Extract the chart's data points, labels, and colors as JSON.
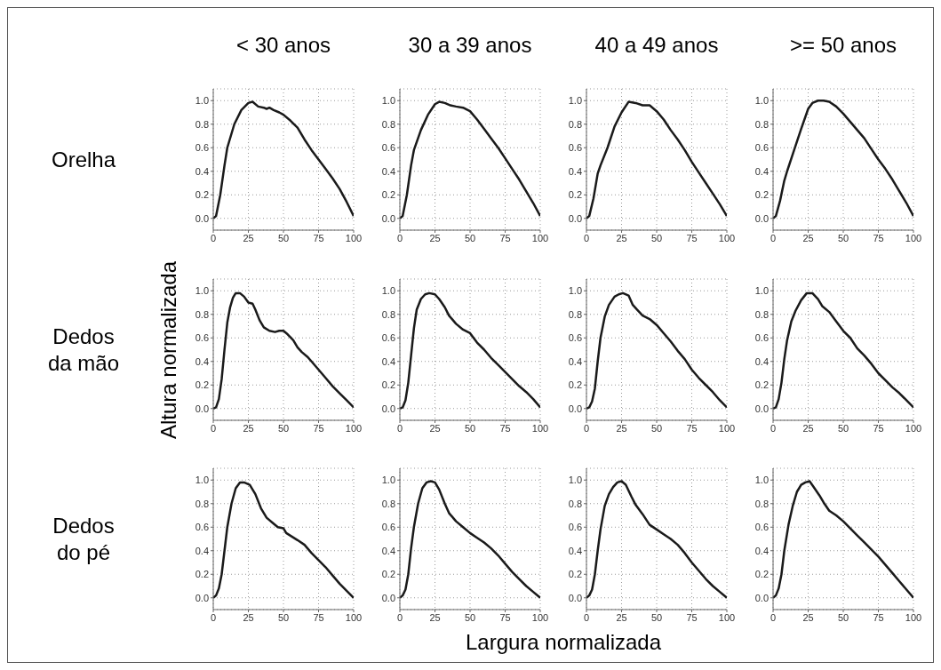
{
  "chart_data": [
    {
      "type": "line",
      "title": "< 30 anos",
      "annotations": [
        "Orelha"
      ],
      "xlim": [
        0,
        100
      ],
      "xticks": [
        0,
        25,
        50,
        75,
        100
      ],
      "ylim": [
        -0.1,
        1.1
      ],
      "yticks": [
        {
          "value": 0,
          "label": "0.0"
        },
        {
          "value": 0.2,
          "label": "0.2"
        },
        {
          "value": 0.4,
          "label": "0.4"
        },
        {
          "value": 0.6,
          "label": "0.6"
        },
        {
          "value": 0.8,
          "label": "0.8"
        },
        {
          "value": 1,
          "label": "1.0"
        }
      ],
      "grid": true,
      "series": [
        {
          "color": "#1a1a1a",
          "x": [
            0,
            2,
            5,
            8,
            10,
            15,
            20,
            25,
            28,
            32,
            36,
            38,
            40,
            43,
            47,
            50,
            55,
            60,
            65,
            70,
            75,
            80,
            85,
            90,
            95,
            100
          ],
          "values": [
            0,
            0.02,
            0.2,
            0.45,
            0.6,
            0.8,
            0.92,
            0.98,
            0.99,
            0.95,
            0.94,
            0.93,
            0.94,
            0.92,
            0.9,
            0.88,
            0.83,
            0.77,
            0.67,
            0.58,
            0.5,
            0.42,
            0.34,
            0.25,
            0.14,
            0.02
          ]
        }
      ]
    },
    {
      "type": "line",
      "title": "30 a 39 anos",
      "xlim": [
        0,
        100
      ],
      "xticks": [
        0,
        25,
        50,
        75,
        100
      ],
      "ylim": [
        -0.1,
        1.1
      ],
      "yticks": [
        {
          "value": 0,
          "label": "0.0"
        },
        {
          "value": 0.2,
          "label": "0.2"
        },
        {
          "value": 0.4,
          "label": "0.4"
        },
        {
          "value": 0.6,
          "label": "0.6"
        },
        {
          "value": 0.8,
          "label": "0.8"
        },
        {
          "value": 1,
          "label": "1.0"
        }
      ],
      "grid": true,
      "series": [
        {
          "color": "#1a1a1a",
          "x": [
            0,
            2,
            5,
            8,
            10,
            15,
            20,
            25,
            28,
            32,
            36,
            40,
            45,
            50,
            55,
            60,
            65,
            70,
            75,
            80,
            85,
            90,
            95,
            100
          ],
          "values": [
            0,
            0.02,
            0.2,
            0.45,
            0.58,
            0.75,
            0.88,
            0.97,
            0.99,
            0.98,
            0.96,
            0.95,
            0.94,
            0.91,
            0.84,
            0.76,
            0.68,
            0.6,
            0.51,
            0.42,
            0.33,
            0.23,
            0.13,
            0.02
          ]
        }
      ]
    },
    {
      "type": "line",
      "title": "40 a 49 anos",
      "xlim": [
        0,
        100
      ],
      "xticks": [
        0,
        25,
        50,
        75,
        100
      ],
      "ylim": [
        -0.1,
        1.1
      ],
      "yticks": [
        {
          "value": 0,
          "label": "0.0"
        },
        {
          "value": 0.2,
          "label": "0.2"
        },
        {
          "value": 0.4,
          "label": "0.4"
        },
        {
          "value": 0.6,
          "label": "0.6"
        },
        {
          "value": 0.8,
          "label": "0.8"
        },
        {
          "value": 1,
          "label": "1.0"
        }
      ],
      "grid": true,
      "series": [
        {
          "color": "#1a1a1a",
          "x": [
            0,
            2,
            5,
            8,
            10,
            15,
            20,
            25,
            30,
            35,
            40,
            45,
            50,
            55,
            60,
            65,
            70,
            75,
            80,
            85,
            90,
            95,
            100
          ],
          "values": [
            0,
            0.02,
            0.17,
            0.38,
            0.45,
            0.6,
            0.78,
            0.9,
            0.99,
            0.98,
            0.96,
            0.96,
            0.91,
            0.84,
            0.75,
            0.67,
            0.58,
            0.48,
            0.39,
            0.3,
            0.21,
            0.12,
            0.02
          ]
        }
      ]
    },
    {
      "type": "line",
      "title": ">= 50 anos",
      "xlim": [
        0,
        100
      ],
      "xticks": [
        0,
        25,
        50,
        75,
        100
      ],
      "ylim": [
        -0.1,
        1.1
      ],
      "yticks": [
        {
          "value": 0,
          "label": "0.0"
        },
        {
          "value": 0.2,
          "label": "0.2"
        },
        {
          "value": 0.4,
          "label": "0.4"
        },
        {
          "value": 0.6,
          "label": "0.6"
        },
        {
          "value": 0.8,
          "label": "0.8"
        },
        {
          "value": 1,
          "label": "1.0"
        }
      ],
      "grid": true,
      "series": [
        {
          "color": "#1a1a1a",
          "x": [
            0,
            2,
            5,
            8,
            10,
            15,
            20,
            25,
            28,
            32,
            36,
            40,
            45,
            50,
            55,
            60,
            65,
            70,
            75,
            80,
            85,
            90,
            95,
            100
          ],
          "values": [
            0,
            0.02,
            0.15,
            0.32,
            0.4,
            0.58,
            0.76,
            0.93,
            0.98,
            1,
            1,
            0.99,
            0.95,
            0.89,
            0.82,
            0.75,
            0.68,
            0.59,
            0.5,
            0.42,
            0.33,
            0.23,
            0.13,
            0.02
          ]
        }
      ]
    },
    {
      "type": "line",
      "annotations": [
        "Dedos da mão"
      ],
      "ylabel": "Altura normalizada",
      "xlim": [
        0,
        100
      ],
      "xticks": [
        0,
        25,
        50,
        75,
        100
      ],
      "ylim": [
        -0.1,
        1.1
      ],
      "yticks": [
        {
          "value": 0,
          "label": "0.0"
        },
        {
          "value": 0.2,
          "label": "0.2"
        },
        {
          "value": 0.4,
          "label": "0.4"
        },
        {
          "value": 0.6,
          "label": "0.6"
        },
        {
          "value": 0.8,
          "label": "0.8"
        },
        {
          "value": 1,
          "label": "1.0"
        }
      ],
      "grid": true,
      "series": [
        {
          "color": "#1a1a1a",
          "x": [
            0,
            2,
            4,
            6,
            8,
            10,
            12,
            14,
            16,
            19,
            22,
            25,
            28,
            30,
            33,
            36,
            40,
            44,
            47,
            50,
            53,
            57,
            60,
            63,
            67,
            70,
            75,
            80,
            85,
            90,
            95,
            100
          ],
          "values": [
            0,
            0.01,
            0.08,
            0.25,
            0.5,
            0.73,
            0.86,
            0.94,
            0.98,
            0.98,
            0.95,
            0.9,
            0.89,
            0.84,
            0.75,
            0.69,
            0.66,
            0.65,
            0.66,
            0.66,
            0.63,
            0.58,
            0.52,
            0.48,
            0.44,
            0.4,
            0.33,
            0.26,
            0.19,
            0.13,
            0.07,
            0.01
          ]
        }
      ]
    },
    {
      "type": "line",
      "xlim": [
        0,
        100
      ],
      "xticks": [
        0,
        25,
        50,
        75,
        100
      ],
      "ylim": [
        -0.1,
        1.1
      ],
      "yticks": [
        {
          "value": 0,
          "label": "0.0"
        },
        {
          "value": 0.2,
          "label": "0.2"
        },
        {
          "value": 0.4,
          "label": "0.4"
        },
        {
          "value": 0.6,
          "label": "0.6"
        },
        {
          "value": 0.8,
          "label": "0.8"
        },
        {
          "value": 1,
          "label": "1.0"
        }
      ],
      "grid": true,
      "series": [
        {
          "color": "#1a1a1a",
          "x": [
            0,
            2,
            4,
            6,
            8,
            10,
            12,
            15,
            18,
            21,
            25,
            28,
            32,
            35,
            40,
            45,
            50,
            55,
            60,
            65,
            70,
            75,
            80,
            85,
            90,
            95,
            100
          ],
          "values": [
            0,
            0.01,
            0.07,
            0.22,
            0.45,
            0.68,
            0.84,
            0.93,
            0.97,
            0.98,
            0.97,
            0.93,
            0.86,
            0.79,
            0.72,
            0.67,
            0.64,
            0.56,
            0.5,
            0.43,
            0.37,
            0.31,
            0.25,
            0.19,
            0.14,
            0.08,
            0.01
          ]
        }
      ]
    },
    {
      "type": "line",
      "xlim": [
        0,
        100
      ],
      "xticks": [
        0,
        25,
        50,
        75,
        100
      ],
      "ylim": [
        -0.1,
        1.1
      ],
      "yticks": [
        {
          "value": 0,
          "label": "0.0"
        },
        {
          "value": 0.2,
          "label": "0.2"
        },
        {
          "value": 0.4,
          "label": "0.4"
        },
        {
          "value": 0.6,
          "label": "0.6"
        },
        {
          "value": 0.8,
          "label": "0.8"
        },
        {
          "value": 1,
          "label": "1.0"
        }
      ],
      "grid": true,
      "series": [
        {
          "color": "#1a1a1a",
          "x": [
            0,
            2,
            4,
            6,
            8,
            10,
            13,
            16,
            20,
            23,
            26,
            30,
            33,
            36,
            40,
            45,
            50,
            55,
            60,
            65,
            70,
            75,
            80,
            85,
            90,
            95,
            100
          ],
          "values": [
            0,
            0.01,
            0.06,
            0.17,
            0.4,
            0.6,
            0.78,
            0.88,
            0.95,
            0.97,
            0.98,
            0.96,
            0.88,
            0.84,
            0.79,
            0.76,
            0.71,
            0.64,
            0.57,
            0.49,
            0.42,
            0.33,
            0.26,
            0.2,
            0.14,
            0.07,
            0.01
          ]
        }
      ]
    },
    {
      "type": "line",
      "xlim": [
        0,
        100
      ],
      "xticks": [
        0,
        25,
        50,
        75,
        100
      ],
      "ylim": [
        -0.1,
        1.1
      ],
      "yticks": [
        {
          "value": 0,
          "label": "0.0"
        },
        {
          "value": 0.2,
          "label": "0.2"
        },
        {
          "value": 0.4,
          "label": "0.4"
        },
        {
          "value": 0.6,
          "label": "0.6"
        },
        {
          "value": 0.8,
          "label": "0.8"
        },
        {
          "value": 1,
          "label": "1.0"
        }
      ],
      "grid": true,
      "series": [
        {
          "color": "#1a1a1a",
          "x": [
            0,
            2,
            4,
            6,
            8,
            10,
            13,
            16,
            20,
            24,
            28,
            32,
            35,
            40,
            45,
            50,
            55,
            60,
            65,
            70,
            75,
            80,
            85,
            90,
            95,
            100
          ],
          "values": [
            0,
            0.01,
            0.08,
            0.22,
            0.42,
            0.58,
            0.74,
            0.83,
            0.92,
            0.98,
            0.98,
            0.93,
            0.87,
            0.82,
            0.74,
            0.66,
            0.6,
            0.51,
            0.45,
            0.38,
            0.3,
            0.24,
            0.18,
            0.13,
            0.07,
            0.01
          ]
        }
      ]
    },
    {
      "type": "line",
      "annotations": [
        "Dedos do pé"
      ],
      "xlim": [
        0,
        100
      ],
      "xticks": [
        0,
        25,
        50,
        75,
        100
      ],
      "ylim": [
        -0.1,
        1.1
      ],
      "yticks": [
        {
          "value": 0,
          "label": "0.0"
        },
        {
          "value": 0.2,
          "label": "0.2"
        },
        {
          "value": 0.4,
          "label": "0.4"
        },
        {
          "value": 0.6,
          "label": "0.6"
        },
        {
          "value": 0.8,
          "label": "0.8"
        },
        {
          "value": 1,
          "label": "1.0"
        }
      ],
      "grid": true,
      "series": [
        {
          "color": "#1a1a1a",
          "x": [
            0,
            2,
            4,
            6,
            8,
            10,
            13,
            16,
            19,
            22,
            26,
            30,
            34,
            38,
            42,
            46,
            50,
            52,
            56,
            60,
            65,
            70,
            75,
            80,
            85,
            90,
            95,
            100
          ],
          "values": [
            0,
            0.02,
            0.08,
            0.2,
            0.4,
            0.6,
            0.8,
            0.93,
            0.98,
            0.98,
            0.96,
            0.88,
            0.76,
            0.68,
            0.64,
            0.6,
            0.59,
            0.55,
            0.52,
            0.49,
            0.45,
            0.38,
            0.32,
            0.26,
            0.19,
            0.12,
            0.06,
            0
          ]
        }
      ]
    },
    {
      "type": "line",
      "xlabel": "Largura normalizada",
      "xlim": [
        0,
        100
      ],
      "xticks": [
        0,
        25,
        50,
        75,
        100
      ],
      "ylim": [
        -0.1,
        1.1
      ],
      "yticks": [
        {
          "value": 0,
          "label": "0.0"
        },
        {
          "value": 0.2,
          "label": "0.2"
        },
        {
          "value": 0.4,
          "label": "0.4"
        },
        {
          "value": 0.6,
          "label": "0.6"
        },
        {
          "value": 0.8,
          "label": "0.8"
        },
        {
          "value": 1,
          "label": "1.0"
        }
      ],
      "grid": true,
      "series": [
        {
          "color": "#1a1a1a",
          "x": [
            0,
            2,
            4,
            6,
            8,
            10,
            13,
            16,
            19,
            22,
            25,
            28,
            32,
            35,
            40,
            45,
            50,
            55,
            60,
            65,
            70,
            75,
            80,
            85,
            90,
            95,
            100
          ],
          "values": [
            0,
            0.02,
            0.07,
            0.2,
            0.42,
            0.6,
            0.8,
            0.93,
            0.98,
            0.99,
            0.98,
            0.92,
            0.8,
            0.72,
            0.65,
            0.6,
            0.55,
            0.51,
            0.47,
            0.42,
            0.36,
            0.29,
            0.22,
            0.16,
            0.1,
            0.05,
            0
          ]
        }
      ]
    },
    {
      "type": "line",
      "xlim": [
        0,
        100
      ],
      "xticks": [
        0,
        25,
        50,
        75,
        100
      ],
      "ylim": [
        -0.1,
        1.1
      ],
      "yticks": [
        {
          "value": 0,
          "label": "0.0"
        },
        {
          "value": 0.2,
          "label": "0.2"
        },
        {
          "value": 0.4,
          "label": "0.4"
        },
        {
          "value": 0.6,
          "label": "0.6"
        },
        {
          "value": 0.8,
          "label": "0.8"
        },
        {
          "value": 1,
          "label": "1.0"
        }
      ],
      "grid": true,
      "series": [
        {
          "color": "#1a1a1a",
          "x": [
            0,
            2,
            4,
            6,
            8,
            10,
            13,
            16,
            19,
            22,
            25,
            28,
            32,
            35,
            40,
            45,
            50,
            55,
            60,
            65,
            70,
            75,
            80,
            85,
            90,
            95,
            100
          ],
          "values": [
            0,
            0.02,
            0.07,
            0.2,
            0.4,
            0.58,
            0.78,
            0.88,
            0.94,
            0.98,
            0.99,
            0.96,
            0.86,
            0.79,
            0.71,
            0.62,
            0.58,
            0.54,
            0.5,
            0.45,
            0.38,
            0.3,
            0.23,
            0.16,
            0.1,
            0.05,
            0
          ]
        }
      ]
    },
    {
      "type": "line",
      "xlim": [
        0,
        100
      ],
      "xticks": [
        0,
        25,
        50,
        75,
        100
      ],
      "ylim": [
        -0.1,
        1.1
      ],
      "yticks": [
        {
          "value": 0,
          "label": "0.0"
        },
        {
          "value": 0.2,
          "label": "0.2"
        },
        {
          "value": 0.4,
          "label": "0.4"
        },
        {
          "value": 0.6,
          "label": "0.6"
        },
        {
          "value": 0.8,
          "label": "0.8"
        },
        {
          "value": 1,
          "label": "1.0"
        }
      ],
      "grid": true,
      "series": [
        {
          "color": "#1a1a1a",
          "x": [
            0,
            2,
            4,
            6,
            8,
            11,
            14,
            17,
            20,
            23,
            26,
            29,
            33,
            36,
            40,
            45,
            50,
            55,
            60,
            65,
            70,
            75,
            80,
            85,
            90,
            95,
            100
          ],
          "values": [
            0,
            0.02,
            0.08,
            0.2,
            0.4,
            0.62,
            0.78,
            0.9,
            0.96,
            0.98,
            0.99,
            0.94,
            0.87,
            0.81,
            0.74,
            0.7,
            0.65,
            0.59,
            0.53,
            0.47,
            0.41,
            0.35,
            0.28,
            0.21,
            0.14,
            0.07,
            0
          ]
        }
      ]
    }
  ]
}
